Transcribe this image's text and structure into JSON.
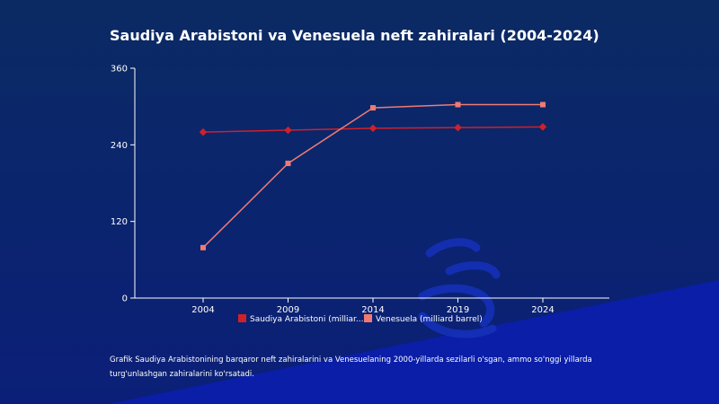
{
  "title": "Saudiya Arabistoni va Venesuela neft zahiralari (2004-2024)",
  "caption": "Grafik Saudiya Arabistonining barqaror neft zahiralarini va Venesuelaning 2000-yillarda sezilarli o'sgan, ammo so'nggi yillarda turg'unlashgan zahiralarini ko'rsatadi.",
  "colors": {
    "background_top": "#0b2a63",
    "background_bottom": "#0a1f8a",
    "saudi": "#d0202a",
    "venezuela": "#f07a72",
    "axis": "#ffffff"
  },
  "chart_data": {
    "type": "line",
    "title": "Saudiya Arabistoni va Venesuela neft zahiralari (2004-2024)",
    "xlabel": "",
    "ylabel": "",
    "categories": [
      "2004",
      "2009",
      "2014",
      "2019",
      "2024"
    ],
    "ylim": [
      0,
      360
    ],
    "yticks": [
      "0",
      "120",
      "240",
      "360"
    ],
    "grid": false,
    "legend_position": "bottom",
    "series": [
      {
        "name": "Saudiya Arabistoni (milliar...",
        "values": [
          260,
          263,
          266,
          267,
          268
        ]
      },
      {
        "name": "Venesuela (milliard barrel)",
        "values": [
          79,
          211,
          298,
          303,
          303
        ]
      }
    ]
  }
}
